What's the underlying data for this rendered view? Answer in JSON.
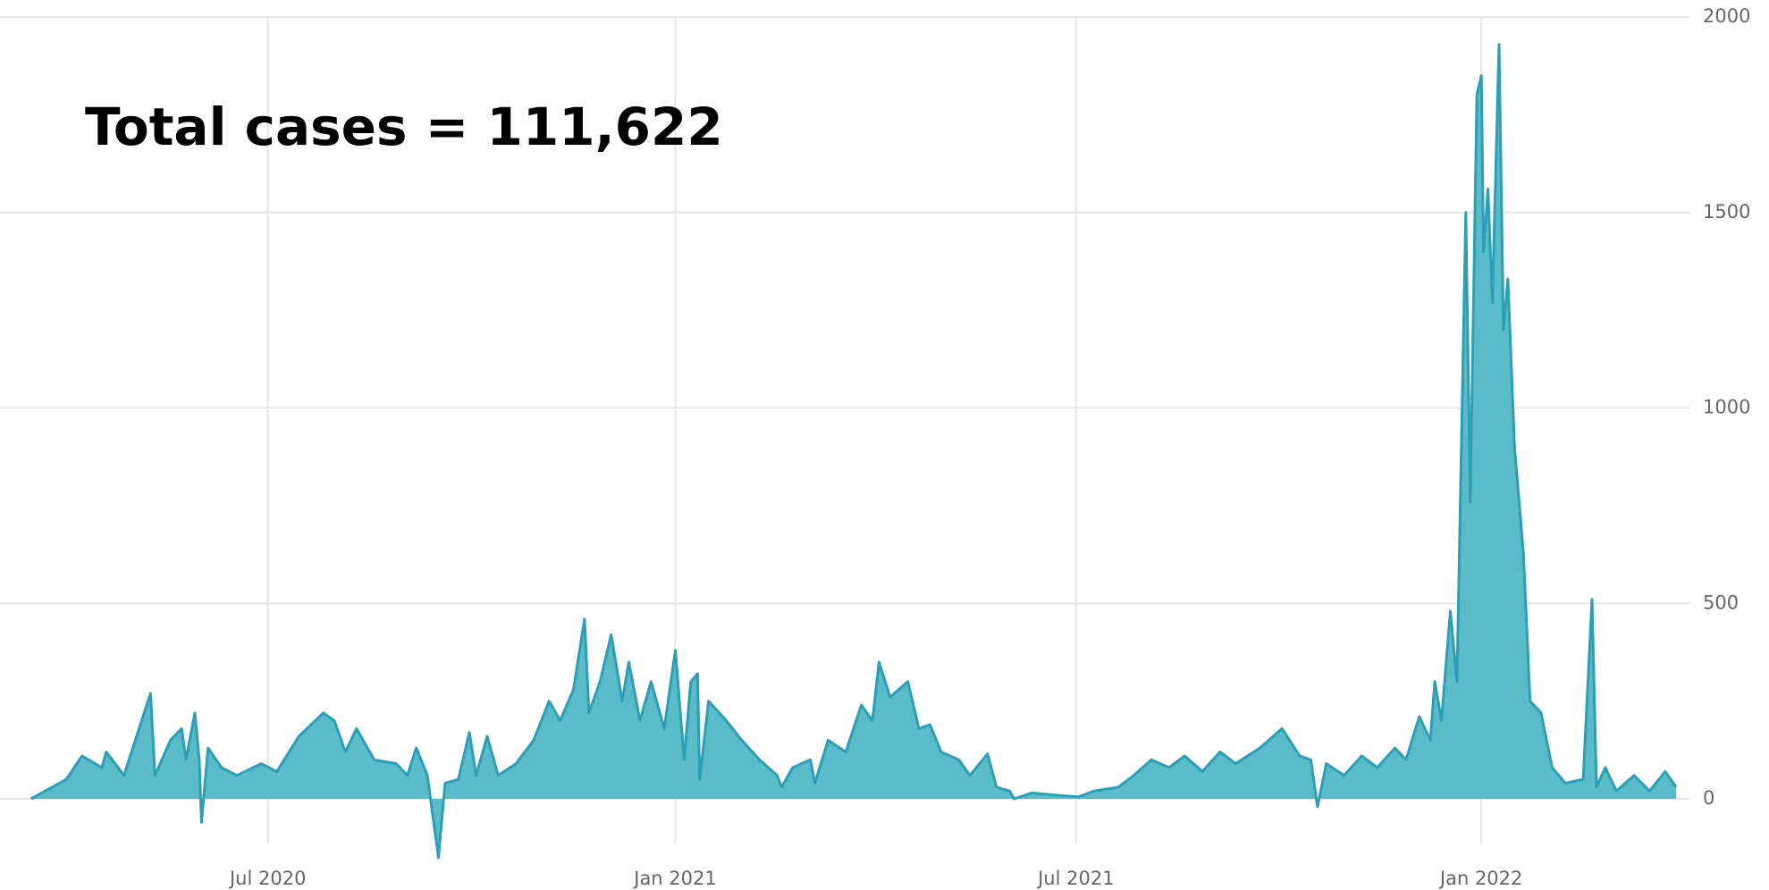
{
  "chart_data": {
    "type": "area",
    "annotation": "Total cases = 111,622",
    "color": "#2a9fb5",
    "fill": "#5bbcc9",
    "x": [
      0,
      16,
      23,
      32,
      34,
      42,
      50,
      54,
      56,
      63,
      68,
      70,
      74,
      76,
      77,
      80,
      86,
      93,
      104,
      111,
      121,
      132,
      137,
      142,
      147,
      155,
      165,
      170,
      174,
      179,
      184,
      187,
      193,
      198,
      201,
      206,
      211,
      219,
      227,
      234,
      239,
      245,
      250,
      252,
      257,
      262,
      267,
      270,
      275,
      280,
      286,
      291,
      295,
      298,
      301,
      302,
      306,
      314,
      321,
      329,
      337,
      339,
      344,
      352,
      354,
      360,
      368,
      375,
      380,
      383,
      388,
      396,
      401,
      406,
      411,
      419,
      424,
      432,
      436,
      442,
      444,
      452,
      462,
      473,
      480,
      491,
      498,
      506,
      514,
      521,
      529,
      537,
      544,
      555,
      565,
      573,
      578,
      581,
      585,
      593,
      601,
      608,
      616,
      621,
      627,
      632,
      634,
      637,
      641,
      644,
      648,
      650,
      653,
      655,
      656,
      658,
      660,
      663,
      665,
      667,
      670,
      674,
      677,
      682,
      687,
      693,
      701,
      705,
      707,
      711,
      716,
      724,
      731,
      738,
      743
    ],
    "values": [
      0,
      50,
      110,
      80,
      120,
      60,
      200,
      270,
      60,
      150,
      180,
      100,
      220,
      100,
      -60,
      130,
      80,
      60,
      90,
      70,
      160,
      220,
      200,
      120,
      180,
      100,
      90,
      60,
      130,
      60,
      -150,
      40,
      50,
      170,
      60,
      160,
      60,
      90,
      150,
      250,
      200,
      280,
      460,
      220,
      300,
      420,
      250,
      350,
      200,
      300,
      180,
      380,
      100,
      300,
      320,
      50,
      250,
      200,
      150,
      100,
      60,
      30,
      80,
      100,
      40,
      150,
      120,
      240,
      200,
      350,
      260,
      300,
      180,
      190,
      120,
      100,
      60,
      115,
      30,
      20,
      0,
      15,
      10,
      5,
      20,
      30,
      60,
      100,
      80,
      110,
      70,
      120,
      90,
      130,
      180,
      110,
      100,
      -20,
      90,
      60,
      110,
      80,
      130,
      100,
      210,
      150,
      300,
      200,
      480,
      300,
      1500,
      760,
      1800,
      1850,
      1400,
      1560,
      1270,
      1930,
      1200,
      1330,
      900,
      630,
      250,
      220,
      80,
      40,
      50,
      510,
      30,
      80,
      20,
      60,
      20,
      70,
      30
    ],
    "xlim": [
      -14,
      749
    ],
    "xticks": [
      {
        "value": 107,
        "label": "Jul 2020"
      },
      {
        "value": 291,
        "label": "Jan 2021"
      },
      {
        "value": 472,
        "label": "Jul 2021"
      },
      {
        "value": 655,
        "label": "Jan 2022"
      }
    ],
    "ylim": [
      -160,
      2000
    ],
    "yticks": [
      0,
      500,
      1000,
      1500,
      2000
    ],
    "grid": true
  }
}
